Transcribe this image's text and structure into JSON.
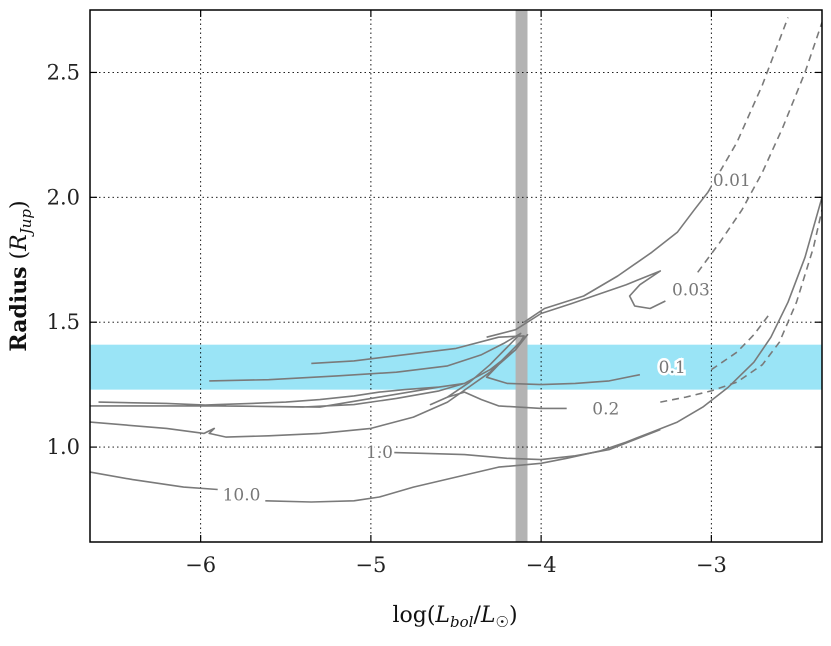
{
  "chart_data": {
    "type": "line",
    "xlabel": "log(L_bol/L_⊙)",
    "ylabel": "Radius (R_Jup)",
    "xlim": [
      -6.65,
      -2.35
    ],
    "ylim": [
      0.62,
      2.75
    ],
    "xticks": [
      -6,
      -5,
      -4,
      -3
    ],
    "xtick_labels": [
      "−6",
      "−5",
      "−4",
      "−3"
    ],
    "yticks": [
      1.0,
      1.5,
      2.0,
      2.5
    ],
    "ytick_labels": [
      "1.0",
      "1.5",
      "2.0",
      "2.5"
    ],
    "grid": true,
    "line_color": "#7a7a7a",
    "vertical_band": {
      "x": [
        -4.15,
        -4.08
      ],
      "color": "#b3b3b3"
    },
    "horizontal_band": {
      "y": [
        1.23,
        1.41
      ],
      "color": "#9ae4f6"
    },
    "series": [
      {
        "name": "0.01",
        "solid": [
          [
            -4.1,
            1.5
          ],
          [
            -3.98,
            1.555
          ],
          [
            -3.75,
            1.605
          ],
          [
            -3.55,
            1.685
          ],
          [
            -3.35,
            1.78
          ],
          [
            -3.2,
            1.86
          ],
          [
            -3.1,
            1.95
          ],
          [
            -3.02,
            2.02
          ]
        ],
        "dashed": [
          [
            -3.02,
            2.02
          ],
          [
            -2.85,
            2.22
          ],
          [
            -2.7,
            2.45
          ],
          [
            -2.55,
            2.72
          ]
        ]
      },
      {
        "name": "0.03",
        "solid": [
          [
            -4.32,
            1.44
          ],
          [
            -4.15,
            1.47
          ],
          [
            -4.0,
            1.535
          ],
          [
            -3.82,
            1.575
          ],
          [
            -3.65,
            1.615
          ],
          [
            -3.5,
            1.65
          ],
          [
            -3.3,
            1.705
          ],
          [
            -3.42,
            1.65
          ],
          [
            -3.48,
            1.605
          ],
          [
            -3.45,
            1.565
          ],
          [
            -3.36,
            1.555
          ],
          [
            -3.27,
            1.585
          ]
        ],
        "dashed": [
          [
            -3.08,
            1.7
          ],
          [
            -2.95,
            1.82
          ],
          [
            -2.82,
            1.95
          ],
          [
            -2.7,
            2.1
          ],
          [
            -2.58,
            2.28
          ],
          [
            -2.45,
            2.5
          ],
          [
            -2.35,
            2.7
          ]
        ]
      },
      {
        "name": "0.1",
        "solid": [
          [
            -5.35,
            1.335
          ],
          [
            -5.1,
            1.345
          ],
          [
            -4.8,
            1.37
          ],
          [
            -4.5,
            1.395
          ],
          [
            -4.25,
            1.44
          ],
          [
            -4.1,
            1.445
          ],
          [
            -4.15,
            1.39
          ],
          [
            -4.25,
            1.33
          ],
          [
            -4.32,
            1.28
          ],
          [
            -4.2,
            1.255
          ],
          [
            -4.0,
            1.25
          ],
          [
            -3.8,
            1.255
          ],
          [
            -3.6,
            1.265
          ],
          [
            -3.42,
            1.29
          ]
        ],
        "dashed": [
          [
            -3.0,
            1.31
          ],
          [
            -2.85,
            1.38
          ],
          [
            -2.75,
            1.45
          ],
          [
            -2.65,
            1.54
          ]
        ]
      },
      {
        "name": "0.2",
        "solid": [
          [
            -5.95,
            1.265
          ],
          [
            -5.6,
            1.27
          ],
          [
            -5.2,
            1.285
          ],
          [
            -4.85,
            1.3
          ],
          [
            -4.55,
            1.325
          ],
          [
            -4.35,
            1.37
          ],
          [
            -4.22,
            1.415
          ],
          [
            -4.12,
            1.455
          ],
          [
            -4.3,
            1.33
          ],
          [
            -4.42,
            1.26
          ],
          [
            -4.55,
            1.2
          ],
          [
            -4.65,
            1.17
          ],
          [
            -4.55,
            1.2
          ],
          [
            -4.45,
            1.22
          ],
          [
            -4.35,
            1.19
          ],
          [
            -4.25,
            1.165
          ],
          [
            -4.0,
            1.155
          ],
          [
            -3.85,
            1.155
          ]
        ],
        "dashed": [
          [
            -3.3,
            1.18
          ],
          [
            -3.15,
            1.2
          ],
          [
            -3.0,
            1.225
          ],
          [
            -2.85,
            1.26
          ],
          [
            -2.7,
            1.33
          ],
          [
            -2.6,
            1.42
          ],
          [
            -2.5,
            1.58
          ],
          [
            -2.4,
            1.8
          ],
          [
            -2.35,
            1.95
          ]
        ]
      },
      {
        "name": "1.0",
        "solid": [
          [
            -6.6,
            1.18
          ],
          [
            -6.2,
            1.175
          ],
          [
            -5.85,
            1.165
          ],
          [
            -5.4,
            1.16
          ],
          [
            -5.1,
            1.17
          ],
          [
            -4.85,
            1.195
          ],
          [
            -4.6,
            1.225
          ],
          [
            -4.45,
            1.255
          ],
          [
            -4.6,
            1.24
          ],
          [
            -4.8,
            1.23
          ],
          [
            -4.95,
            1.22
          ],
          [
            -5.1,
            1.205
          ],
          [
            -5.3,
            1.19
          ],
          [
            -5.5,
            1.18
          ],
          [
            -5.7,
            1.175
          ],
          [
            -5.9,
            1.17
          ],
          [
            -6.1,
            1.165
          ],
          [
            -6.3,
            1.165
          ],
          [
            -6.65,
            1.165
          ],
          [
            -5.9,
            1.165
          ],
          [
            -5.3,
            1.16
          ],
          [
            -4.95,
            1.2
          ],
          [
            -4.6,
            1.24
          ],
          [
            -4.45,
            1.255
          ],
          [
            -4.3,
            1.31
          ],
          [
            -4.15,
            1.39
          ],
          [
            -4.08,
            1.45
          ],
          [
            -4.3,
            1.3
          ],
          [
            -4.55,
            1.18
          ],
          [
            -4.75,
            1.12
          ],
          [
            -5.0,
            1.075
          ],
          [
            -5.3,
            1.055
          ],
          [
            -5.6,
            1.045
          ],
          [
            -5.85,
            1.04
          ],
          [
            -5.95,
            1.055
          ],
          [
            -5.92,
            1.075
          ],
          [
            -5.98,
            1.055
          ],
          [
            -6.2,
            1.075
          ],
          [
            -6.65,
            1.1
          ]
        ],
        "solid_tail": [
          [
            -4.95,
            0.98
          ],
          [
            -4.7,
            0.975
          ],
          [
            -4.45,
            0.97
          ],
          [
            -4.2,
            0.955
          ],
          [
            -4.0,
            0.95
          ],
          [
            -3.8,
            0.965
          ],
          [
            -3.6,
            0.99
          ],
          [
            -3.45,
            1.03
          ],
          [
            -3.3,
            1.07
          ]
        ],
        "dashed": []
      },
      {
        "name": "10.0",
        "solid": [
          [
            -6.65,
            0.9
          ],
          [
            -6.4,
            0.87
          ],
          [
            -6.1,
            0.84
          ],
          [
            -5.9,
            0.83
          ]
        ],
        "solid_tail": [
          [
            -5.62,
            0.785
          ],
          [
            -5.35,
            0.78
          ],
          [
            -5.1,
            0.785
          ],
          [
            -4.95,
            0.8
          ],
          [
            -4.75,
            0.84
          ],
          [
            -4.5,
            0.88
          ],
          [
            -4.25,
            0.92
          ],
          [
            -4.0,
            0.935
          ],
          [
            -3.85,
            0.955
          ],
          [
            -3.65,
            0.985
          ],
          [
            -3.5,
            1.02
          ],
          [
            -3.35,
            1.06
          ],
          [
            -3.2,
            1.1
          ],
          [
            -3.05,
            1.16
          ],
          [
            -2.9,
            1.24
          ],
          [
            -2.75,
            1.34
          ],
          [
            -2.65,
            1.44
          ],
          [
            -2.55,
            1.58
          ],
          [
            -2.45,
            1.76
          ],
          [
            -2.35,
            2.0
          ]
        ],
        "dashed": []
      }
    ],
    "contour_labels": [
      {
        "text": "0.01",
        "x": -2.88,
        "y": 2.07
      },
      {
        "text": "0.03",
        "x": -3.12,
        "y": 1.63
      },
      {
        "text": "0.1",
        "x": -3.23,
        "y": 1.32
      },
      {
        "text": "0.2",
        "x": -3.62,
        "y": 1.155
      },
      {
        "text": "1.0",
        "x": -4.95,
        "y": 0.98
      },
      {
        "text": "10.0",
        "x": -5.76,
        "y": 0.81
      }
    ]
  }
}
